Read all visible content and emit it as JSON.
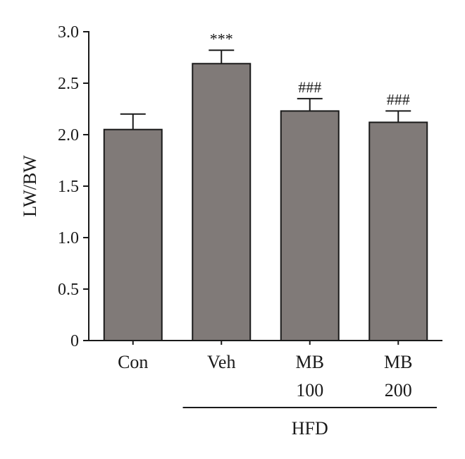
{
  "chart_data": {
    "type": "bar",
    "ylabel": "LW/BW",
    "xlabel": "",
    "ylim": [
      0,
      3.0
    ],
    "yticks": [
      {
        "value": 0,
        "label": "0"
      },
      {
        "value": 0.5,
        "label": "0.5"
      },
      {
        "value": 1.0,
        "label": "1.0"
      },
      {
        "value": 1.5,
        "label": "1.5"
      },
      {
        "value": 2.0,
        "label": "2.0"
      },
      {
        "value": 2.5,
        "label": "2.5"
      },
      {
        "value": 3.0,
        "label": "3.0"
      }
    ],
    "categories": [
      {
        "line1": "Con",
        "line2": ""
      },
      {
        "line1": "Veh",
        "line2": ""
      },
      {
        "line1": "MB",
        "line2": "100"
      },
      {
        "line1": "MB",
        "line2": "200"
      }
    ],
    "values": [
      2.05,
      2.69,
      2.23,
      2.12
    ],
    "errors": [
      0.15,
      0.13,
      0.12,
      0.11
    ],
    "significance": [
      "",
      "***",
      "###",
      "###"
    ],
    "group": {
      "label": "HFD",
      "from_category": 1,
      "to_category": 3
    },
    "bar_color": "#807a78",
    "grid": false
  }
}
